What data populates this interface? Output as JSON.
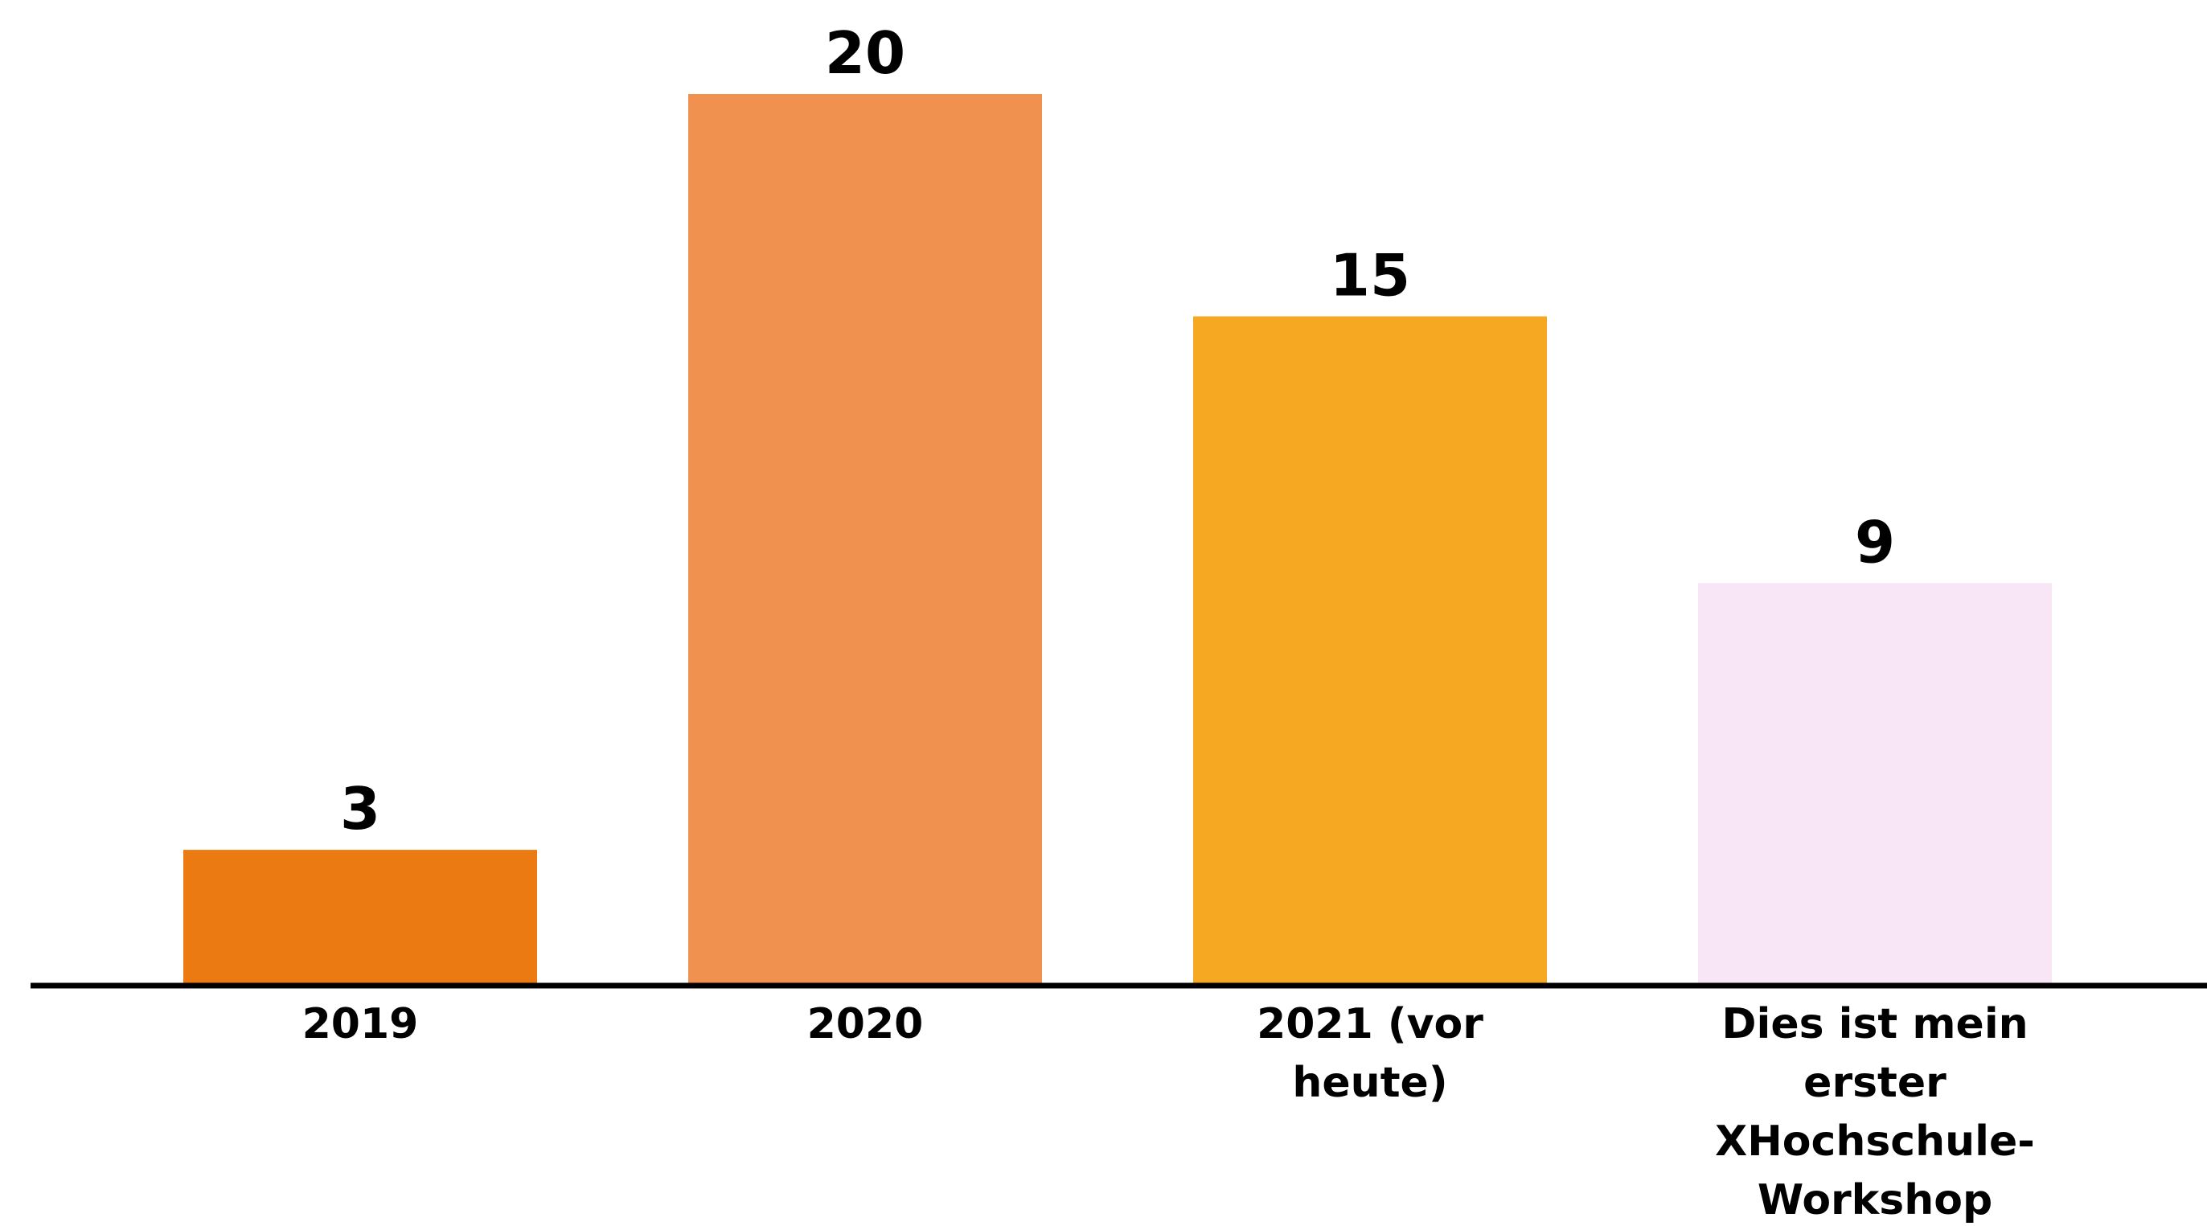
{
  "chart_data": {
    "type": "bar",
    "categories": [
      [
        "2019"
      ],
      [
        "2020"
      ],
      [
        "2021 (vor",
        "heute)"
      ],
      [
        "Dies ist mein",
        "erster",
        "XHochschule-",
        "Workshop"
      ]
    ],
    "values": [
      3,
      20,
      15,
      9
    ],
    "colors": [
      "#EC7A12",
      "#F0914F",
      "#F6A823",
      "#F8E6F6"
    ],
    "axis_color": "#000000",
    "data_labels": true,
    "grid": false,
    "legend": "none"
  }
}
